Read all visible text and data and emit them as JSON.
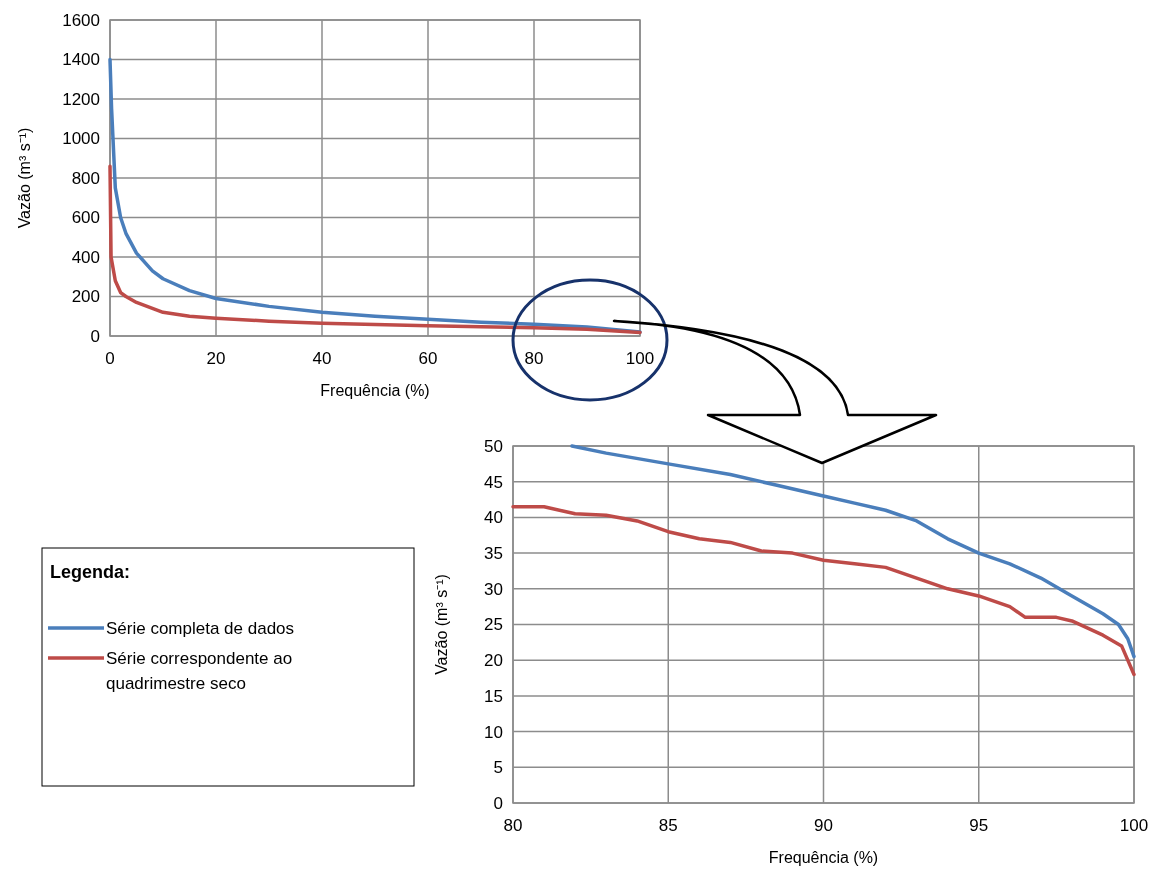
{
  "chart_data": [
    {
      "type": "line",
      "xlabel": "Frequência (%)",
      "ylabel": "Vazão (m³ s⁻¹)",
      "xlim": [
        0,
        100
      ],
      "ylim": [
        0,
        1600
      ],
      "xticks": [
        0,
        20,
        40,
        60,
        80,
        100
      ],
      "yticks": [
        0,
        200,
        400,
        600,
        800,
        1000,
        1200,
        1400,
        1600
      ],
      "grid": true,
      "line_style": "solid",
      "series": [
        {
          "color": "#4a7ebb",
          "x": [
            0,
            0.3,
            1,
            2,
            3,
            5,
            8,
            10,
            15,
            20,
            30,
            40,
            50,
            60,
            70,
            80,
            90,
            100
          ],
          "values": [
            1400,
            1150,
            750,
            600,
            520,
            420,
            330,
            290,
            230,
            190,
            150,
            120,
            100,
            85,
            70,
            60,
            45,
            20
          ]
        },
        {
          "color": "#be4b48",
          "x": [
            0,
            0.2,
            1,
            2,
            3,
            5,
            10,
            15,
            20,
            30,
            40,
            50,
            60,
            70,
            80,
            90,
            100
          ],
          "values": [
            860,
            400,
            280,
            220,
            200,
            170,
            120,
            100,
            90,
            75,
            65,
            58,
            52,
            47,
            42,
            34,
            18
          ]
        }
      ]
    },
    {
      "type": "line",
      "xlabel": "Frequência (%)",
      "ylabel": "Vazão (m³ s⁻¹)",
      "xlim": [
        80,
        100
      ],
      "ylim": [
        0,
        50
      ],
      "xticks": [
        80,
        85,
        90,
        95,
        100
      ],
      "yticks": [
        0,
        5,
        10,
        15,
        20,
        25,
        30,
        35,
        40,
        45,
        50
      ],
      "grid": true,
      "line_style": "solid",
      "legend": "left",
      "legend_title": "Legenda:",
      "series": [
        {
          "name": "Série completa de dados",
          "color": "#4a7ebb",
          "x": [
            81.9,
            83,
            85,
            87,
            88.5,
            90,
            91,
            92,
            93,
            94,
            95,
            96,
            97,
            98,
            99,
            99.5,
            99.8,
            100
          ],
          "values": [
            50,
            49,
            47.5,
            46,
            44.5,
            43,
            42,
            41,
            39.5,
            37,
            35,
            33.5,
            31.5,
            29,
            26.5,
            25,
            23,
            20.5
          ]
        },
        {
          "name": "Série correspondente ao quadrimestre seco",
          "color": "#be4b48",
          "x": [
            80,
            81,
            82,
            83,
            84,
            85,
            86,
            87,
            88,
            89,
            90,
            91,
            92,
            93,
            94,
            95,
            96,
            96.5,
            97.5,
            98,
            99,
            99.6,
            100
          ],
          "values": [
            41.5,
            41.5,
            40.5,
            40.3,
            39.5,
            38,
            37,
            36.5,
            35.3,
            35,
            34,
            33.5,
            33,
            31.5,
            30,
            29,
            27.5,
            26,
            26,
            25.5,
            23.5,
            22,
            18
          ]
        }
      ]
    }
  ]
}
